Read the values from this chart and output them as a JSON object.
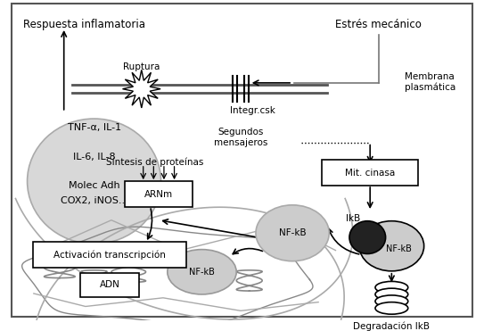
{
  "labels": {
    "estres_mecanico": "Estrés mecánico",
    "membrana_plasmatica": "Membrana\nplasmática",
    "ruptura": "Ruptura",
    "integr_csk": "Integr.csk",
    "segundos_mensajeros": "Segundos\nmensajeros",
    "mit_cinasa": "Mit. cinasa",
    "ikb_label": "IkB",
    "nfkb_circle": "NF-kB",
    "degradacion": "Degradación IkB",
    "sintesis": "Síntesis de proteínas",
    "arnm": "ARNm",
    "activacion": "Activación transcripción",
    "adn": "ADN",
    "nfkb_free": "NF-kB",
    "nfkb_nucleus": "NF-kB",
    "respuesta": "Respuesta inflamatoria",
    "cytokines": "TNF-α, IL-1\n\nIL-6, IL-8\n\nMolec Adh\nCOX2, iNOS..."
  },
  "font_size": 8.5,
  "small_font": 7.5
}
